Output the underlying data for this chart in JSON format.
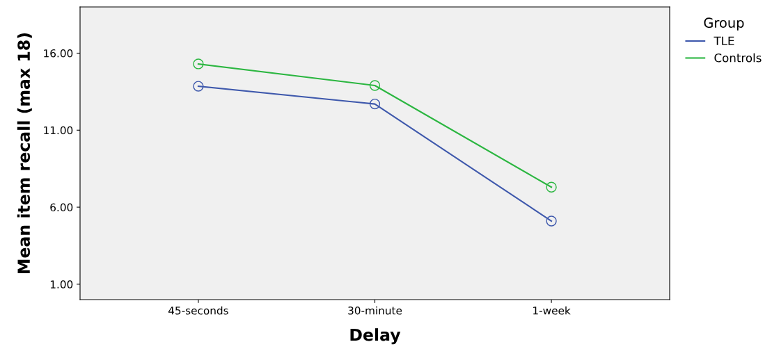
{
  "chart_data": {
    "type": "line",
    "xlabel": "Delay",
    "ylabel": "Mean item recall (max 18)",
    "legend_title": "Group",
    "categories": [
      "45-seconds",
      "30-minute",
      "1-week"
    ],
    "series": [
      {
        "name": "TLE",
        "color": "#3e58ac",
        "values": [
          13.85,
          12.7,
          5.1
        ]
      },
      {
        "name": "Controls",
        "color": "#2bb640",
        "values": [
          15.3,
          13.9,
          7.3
        ]
      }
    ],
    "ylim": [
      0,
      19
    ],
    "yticks": [
      {
        "value": 1,
        "label": "1.00"
      },
      {
        "value": 6,
        "label": "6.00"
      },
      {
        "value": 11,
        "label": "11.00"
      },
      {
        "value": 16,
        "label": "16.00"
      }
    ],
    "marker": "circle",
    "line_style": "solid",
    "grid": false,
    "legend": "top right"
  }
}
